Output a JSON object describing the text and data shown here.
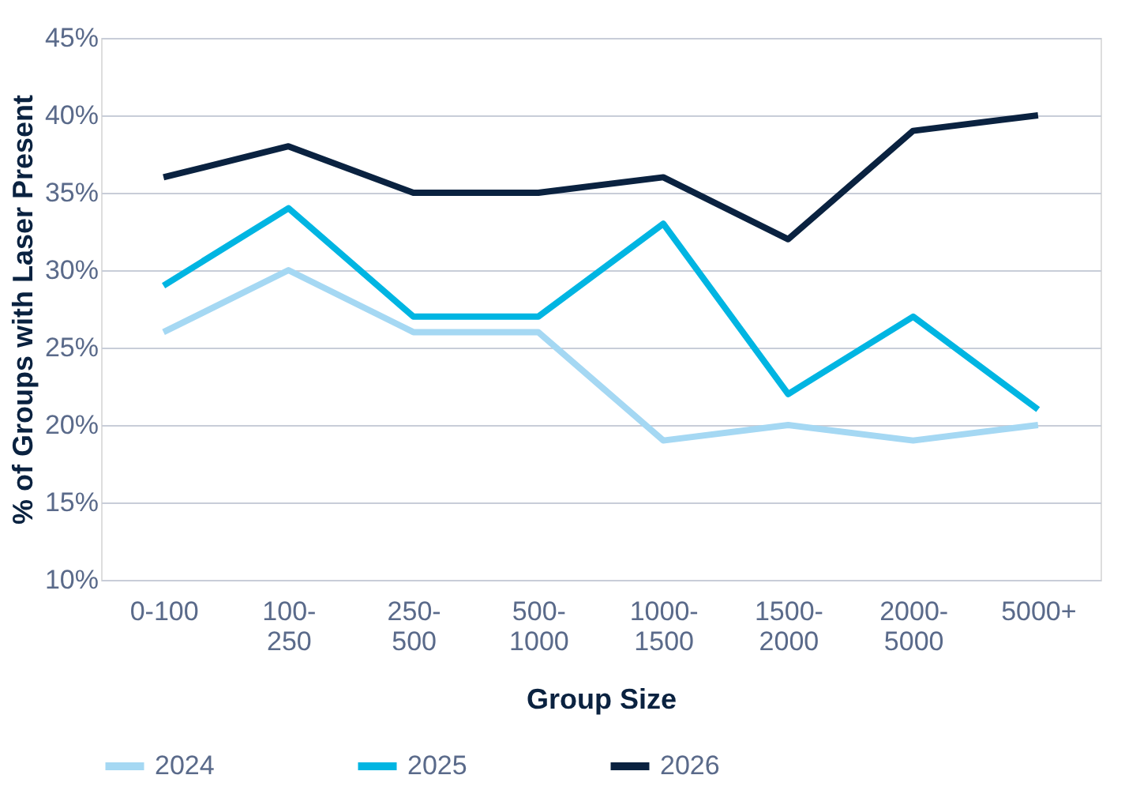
{
  "chart_data": {
    "type": "line",
    "xlabel": "Group Size",
    "ylabel": "% of Groups with Laser Present",
    "categories": [
      "0-100",
      "100-250",
      "250-500",
      "500-1000",
      "1000-1500",
      "1500-2000",
      "2000-5000",
      "5000+"
    ],
    "series": [
      {
        "name": "2024",
        "color": "#a5d8f3",
        "values": [
          26,
          30,
          26,
          26,
          19,
          20,
          19,
          20
        ]
      },
      {
        "name": "2025",
        "color": "#00b5e2",
        "values": [
          29,
          34,
          27,
          27,
          33,
          22,
          27,
          21
        ]
      },
      {
        "name": "2026",
        "color": "#0a2240",
        "values": [
          36,
          38,
          35,
          35,
          36,
          32,
          39,
          40
        ]
      }
    ],
    "ylim": [
      10,
      45
    ],
    "yticks": [
      {
        "value": 10,
        "label": "10%"
      },
      {
        "value": 15,
        "label": "15%"
      },
      {
        "value": 20,
        "label": "20%"
      },
      {
        "value": 25,
        "label": "25%"
      },
      {
        "value": 30,
        "label": "30%"
      },
      {
        "value": 35,
        "label": "35%"
      },
      {
        "value": 40,
        "label": "40%"
      },
      {
        "value": 45,
        "label": "45%"
      }
    ],
    "grid": "y",
    "legend": "bottom",
    "marker": "none",
    "line_style": "solid"
  }
}
